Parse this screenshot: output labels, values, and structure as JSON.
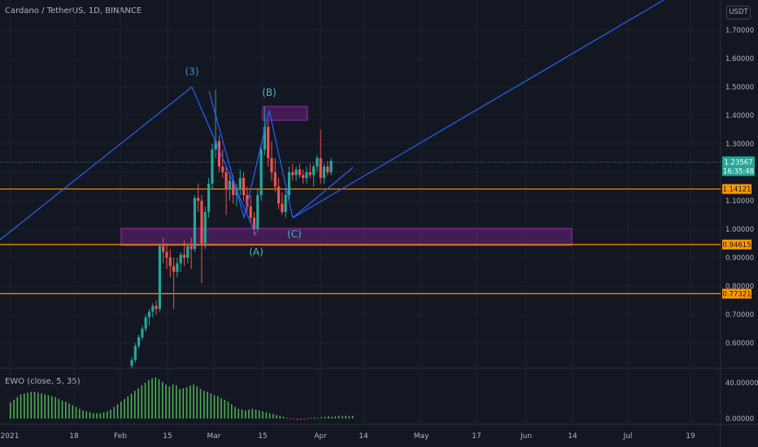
{
  "header": {
    "title": "Cardano / TetherUS, 1D, BINANCE"
  },
  "indicator": {
    "label": "EWO (close, 5, 35)"
  },
  "price_scale": {
    "currency": "USDT",
    "ticks": [
      "1.70000",
      "1.60000",
      "1.50000",
      "1.40000",
      "1.30000",
      "1.20000",
      "1.10000",
      "1.00000",
      "0.90000",
      "0.80000",
      "0.70000",
      "0.60000"
    ]
  },
  "ewo_scale": {
    "ticks": [
      "40.00000",
      "0.00000"
    ]
  },
  "time_axis": {
    "labels": [
      "2021",
      "18",
      "Feb",
      "15",
      "Mar",
      "15",
      "Apr",
      "14",
      "May",
      "17",
      "Jun",
      "14",
      "Jul",
      "19"
    ]
  },
  "current_price": {
    "value": "1.23567",
    "countdown": "16:35:48"
  },
  "levels": [
    {
      "value": "1.14121",
      "price": 1.14121
    },
    {
      "value": "0.94615",
      "price": 0.94615
    },
    {
      "value": "0.77321",
      "price": 0.77321
    }
  ],
  "wave_labels": [
    {
      "text": "(3)",
      "day": 47,
      "price": 1.54
    },
    {
      "text": "(B)",
      "day": 73,
      "price": 1.45
    },
    {
      "text": "(A)",
      "day": 66,
      "price": 0.915
    },
    {
      "text": "(C)",
      "day": 81,
      "price": 0.975
    }
  ],
  "colors": {
    "background": "#131722",
    "grid": "#1e222d",
    "up": "#26a69a",
    "down": "#ef5350",
    "trendline": "#2962ff",
    "level": "#ff9800",
    "zone": "#9c27b0",
    "wave_label": "#4fb6c3",
    "ewo": "#4caf50"
  },
  "chart_data": {
    "type": "candlestick",
    "symbol": "Cardano / TetherUS",
    "interval": "1D",
    "exchange": "BINANCE",
    "y_range": [
      0.52,
      1.77
    ],
    "ohlc": [
      [
        0.52,
        0.55,
        0.51,
        0.54
      ],
      [
        0.54,
        0.6,
        0.53,
        0.59
      ],
      [
        0.59,
        0.63,
        0.58,
        0.62
      ],
      [
        0.62,
        0.66,
        0.61,
        0.65
      ],
      [
        0.65,
        0.7,
        0.64,
        0.69
      ],
      [
        0.69,
        0.72,
        0.66,
        0.71
      ],
      [
        0.71,
        0.74,
        0.69,
        0.73
      ],
      [
        0.73,
        0.75,
        0.7,
        0.72
      ],
      [
        0.72,
        0.95,
        0.71,
        0.94
      ],
      [
        0.94,
        0.97,
        0.88,
        0.92
      ],
      [
        0.92,
        0.95,
        0.86,
        0.9
      ],
      [
        0.9,
        0.93,
        0.83,
        0.87
      ],
      [
        0.87,
        0.9,
        0.72,
        0.85
      ],
      [
        0.85,
        0.9,
        0.83,
        0.88
      ],
      [
        0.88,
        0.92,
        0.85,
        0.91
      ],
      [
        0.91,
        0.96,
        0.87,
        0.9
      ],
      [
        0.9,
        0.95,
        0.88,
        0.94
      ],
      [
        0.94,
        0.97,
        0.86,
        0.93
      ],
      [
        0.93,
        1.12,
        0.92,
        1.11
      ],
      [
        1.11,
        1.16,
        1.06,
        1.1
      ],
      [
        1.1,
        1.12,
        0.81,
        0.95
      ],
      [
        0.95,
        1.08,
        0.93,
        1.06
      ],
      [
        1.06,
        1.18,
        1.04,
        1.16
      ],
      [
        1.16,
        1.3,
        1.14,
        1.28
      ],
      [
        1.28,
        1.49,
        1.25,
        1.31
      ],
      [
        1.31,
        1.33,
        1.2,
        1.22
      ],
      [
        1.22,
        1.28,
        1.18,
        1.2
      ],
      [
        1.2,
        1.22,
        1.05,
        1.14
      ],
      [
        1.14,
        1.2,
        1.1,
        1.17
      ],
      [
        1.17,
        1.19,
        1.09,
        1.12
      ],
      [
        1.12,
        1.16,
        1.08,
        1.14
      ],
      [
        1.14,
        1.21,
        1.12,
        1.18
      ],
      [
        1.18,
        1.2,
        1.1,
        1.12
      ],
      [
        1.12,
        1.15,
        1.06,
        1.08
      ],
      [
        1.08,
        1.12,
        1.02,
        1.04
      ],
      [
        1.04,
        1.06,
        0.98,
        1.0
      ],
      [
        1.0,
        1.14,
        0.99,
        1.12
      ],
      [
        1.12,
        1.3,
        1.1,
        1.28
      ],
      [
        1.28,
        1.43,
        1.26,
        1.36
      ],
      [
        1.36,
        1.38,
        1.22,
        1.25
      ],
      [
        1.25,
        1.31,
        1.17,
        1.2
      ],
      [
        1.2,
        1.25,
        1.13,
        1.15
      ],
      [
        1.15,
        1.18,
        1.07,
        1.09
      ],
      [
        1.09,
        1.13,
        1.05,
        1.06
      ],
      [
        1.06,
        1.14,
        1.04,
        1.12
      ],
      [
        1.12,
        1.22,
        1.1,
        1.2
      ],
      [
        1.2,
        1.23,
        1.17,
        1.19
      ],
      [
        1.19,
        1.22,
        1.17,
        1.21
      ],
      [
        1.21,
        1.23,
        1.18,
        1.19
      ],
      [
        1.19,
        1.21,
        1.16,
        1.18
      ],
      [
        1.18,
        1.22,
        1.16,
        1.2
      ],
      [
        1.2,
        1.23,
        1.18,
        1.19
      ],
      [
        1.19,
        1.23,
        1.15,
        1.22
      ],
      [
        1.22,
        1.26,
        1.2,
        1.25
      ],
      [
        1.25,
        1.35,
        1.16,
        1.18
      ],
      [
        1.18,
        1.23,
        1.16,
        1.22
      ],
      [
        1.22,
        1.24,
        1.19,
        1.2
      ],
      [
        1.2,
        1.25,
        1.19,
        1.24
      ]
    ],
    "ewo": [
      18,
      21,
      24,
      27,
      28,
      29,
      30,
      30,
      29,
      28,
      27,
      26,
      25,
      24,
      22,
      20,
      19,
      17,
      15,
      13,
      11,
      9,
      8,
      7,
      6,
      6,
      6,
      7,
      8,
      10,
      13,
      16,
      19,
      22,
      25,
      28,
      31,
      34,
      37,
      40,
      43,
      45,
      46,
      44,
      41,
      38,
      36,
      38,
      37,
      33,
      34,
      35,
      37,
      38,
      36,
      33,
      31,
      30,
      28,
      26,
      25,
      23,
      21,
      19,
      16,
      13,
      11,
      10,
      9,
      10,
      11,
      10,
      9,
      8,
      7,
      6,
      5,
      4,
      3,
      2,
      1,
      -0.5,
      -1,
      -1.5,
      -1.2,
      -0.8,
      0.5,
      1,
      1.2,
      0.8,
      1.5,
      2,
      2.5,
      2,
      2.5,
      3,
      2.5,
      3,
      2.5,
      3
    ],
    "annotations": [
      "(3)",
      "(B)",
      "(A)",
      "(C)"
    ]
  }
}
